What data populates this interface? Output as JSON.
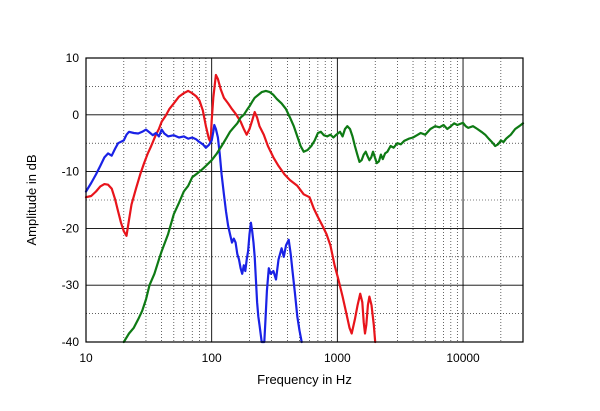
{
  "chart_data": {
    "type": "line",
    "title": "",
    "xlabel": "Frequency  in Hz",
    "ylabel": "Amplitude in dB",
    "x_scale": "log",
    "xlim": [
      10,
      30000
    ],
    "ylim": [
      -40,
      10
    ],
    "x_ticks": [
      10,
      100,
      1000,
      10000
    ],
    "x_tick_labels": [
      "10",
      "100",
      "1000",
      "10000"
    ],
    "y_ticks": [
      10,
      0,
      -10,
      -20,
      -30,
      -40
    ],
    "y_tick_labels": [
      "10",
      "0",
      "-10",
      "-20",
      "-30",
      "-40"
    ],
    "grid": true,
    "legend": "none",
    "series": [
      {
        "color": "#e8141b",
        "points": [
          [
            10,
            -14.5
          ],
          [
            11,
            -14.3
          ],
          [
            12,
            -13.5
          ],
          [
            13,
            -12.6
          ],
          [
            14,
            -12.2
          ],
          [
            15,
            -12.3
          ],
          [
            16,
            -13.0
          ],
          [
            17,
            -14.8
          ],
          [
            18,
            -17.0
          ],
          [
            19,
            -19.0
          ],
          [
            20,
            -20.5
          ],
          [
            21,
            -21.3
          ],
          [
            22,
            -18.5
          ],
          [
            23,
            -15.8
          ],
          [
            25,
            -13.0
          ],
          [
            27,
            -10.5
          ],
          [
            29,
            -8.5
          ],
          [
            31,
            -6.8
          ],
          [
            33,
            -5.5
          ],
          [
            36,
            -3.5
          ],
          [
            38,
            -2.5
          ],
          [
            40,
            -1.2
          ],
          [
            43,
            -0.2
          ],
          [
            46,
            1.0
          ],
          [
            50,
            2.0
          ],
          [
            55,
            3.2
          ],
          [
            60,
            3.8
          ],
          [
            65,
            4.2
          ],
          [
            70,
            3.8
          ],
          [
            75,
            3.3
          ],
          [
            80,
            2.5
          ],
          [
            85,
            0.8
          ],
          [
            90,
            -2.0
          ],
          [
            95,
            -4.2
          ],
          [
            98,
            -4.8
          ],
          [
            100,
            -1.0
          ],
          [
            103,
            3.0
          ],
          [
            106,
            5.5
          ],
          [
            108,
            7.0
          ],
          [
            112,
            6.3
          ],
          [
            118,
            4.5
          ],
          [
            125,
            3.0
          ],
          [
            135,
            2.0
          ],
          [
            145,
            1.0
          ],
          [
            155,
            0.2
          ],
          [
            170,
            -1.2
          ],
          [
            180,
            -2.5
          ],
          [
            190,
            -3.5
          ],
          [
            200,
            -2.5
          ],
          [
            210,
            -1.0
          ],
          [
            220,
            0.5
          ],
          [
            230,
            -0.5
          ],
          [
            240,
            -2.0
          ],
          [
            260,
            -3.5
          ],
          [
            280,
            -5.5
          ],
          [
            310,
            -7.5
          ],
          [
            340,
            -9.0
          ],
          [
            380,
            -10.5
          ],
          [
            420,
            -11.5
          ],
          [
            480,
            -12.5
          ],
          [
            540,
            -14.0
          ],
          [
            600,
            -14.5
          ],
          [
            650,
            -16.5
          ],
          [
            700,
            -18.0
          ],
          [
            760,
            -19.5
          ],
          [
            820,
            -21.0
          ],
          [
            880,
            -23.0
          ],
          [
            950,
            -26.5
          ],
          [
            1020,
            -29.0
          ],
          [
            1100,
            -32.0
          ],
          [
            1180,
            -35.0
          ],
          [
            1250,
            -37.5
          ],
          [
            1300,
            -38.5
          ],
          [
            1380,
            -36.0
          ],
          [
            1450,
            -33.5
          ],
          [
            1520,
            -31.5
          ],
          [
            1580,
            -33.0
          ],
          [
            1620,
            -36.5
          ],
          [
            1660,
            -38.5
          ],
          [
            1700,
            -37.0
          ],
          [
            1750,
            -33.5
          ],
          [
            1800,
            -32.0
          ],
          [
            1870,
            -33.5
          ],
          [
            1950,
            -37.0
          ],
          [
            2000,
            -40.0
          ]
        ]
      },
      {
        "color": "#1a22e6",
        "points": [
          [
            10,
            -13.5
          ],
          [
            11,
            -12.0
          ],
          [
            12,
            -10.5
          ],
          [
            13,
            -9.0
          ],
          [
            14,
            -7.5
          ],
          [
            15,
            -6.8
          ],
          [
            16,
            -7.2
          ],
          [
            17,
            -6.0
          ],
          [
            18,
            -5.0
          ],
          [
            20,
            -4.5
          ],
          [
            21,
            -3.5
          ],
          [
            22,
            -3.0
          ],
          [
            24,
            -3.2
          ],
          [
            26,
            -3.3
          ],
          [
            28,
            -3.0
          ],
          [
            30,
            -2.6
          ],
          [
            32,
            -3.1
          ],
          [
            34,
            -3.6
          ],
          [
            36,
            -3.2
          ],
          [
            38,
            -3.8
          ],
          [
            40,
            -2.6
          ],
          [
            42,
            -3.3
          ],
          [
            45,
            -3.8
          ],
          [
            50,
            -3.6
          ],
          [
            55,
            -4.0
          ],
          [
            60,
            -3.8
          ],
          [
            65,
            -4.2
          ],
          [
            70,
            -4.0
          ],
          [
            75,
            -4.3
          ],
          [
            80,
            -4.8
          ],
          [
            85,
            -5.2
          ],
          [
            90,
            -5.8
          ],
          [
            95,
            -5.3
          ],
          [
            100,
            -4.5
          ],
          [
            103,
            -3.0
          ],
          [
            105,
            -1.8
          ],
          [
            108,
            -2.5
          ],
          [
            112,
            -4.0
          ],
          [
            116,
            -7.0
          ],
          [
            120,
            -10.5
          ],
          [
            125,
            -14.0
          ],
          [
            130,
            -17.0
          ],
          [
            135,
            -19.5
          ],
          [
            140,
            -21.0
          ],
          [
            145,
            -22.5
          ],
          [
            150,
            -21.8
          ],
          [
            155,
            -22.5
          ],
          [
            160,
            -24.5
          ],
          [
            165,
            -25.5
          ],
          [
            170,
            -27.0
          ],
          [
            175,
            -28.0
          ],
          [
            180,
            -26.5
          ],
          [
            185,
            -27.5
          ],
          [
            190,
            -25.5
          ],
          [
            195,
            -24.0
          ],
          [
            200,
            -21.0
          ],
          [
            205,
            -19.0
          ],
          [
            210,
            -20.5
          ],
          [
            215,
            -22.5
          ],
          [
            220,
            -25.0
          ],
          [
            225,
            -29.0
          ],
          [
            230,
            -33.0
          ],
          [
            235,
            -35.5
          ],
          [
            240,
            -37.0
          ],
          [
            245,
            -38.5
          ],
          [
            250,
            -40.0
          ],
          [
            262,
            -40.0
          ],
          [
            268,
            -36.0
          ],
          [
            275,
            -31.0
          ],
          [
            285,
            -27.0
          ],
          [
            295,
            -28.0
          ],
          [
            310,
            -27.5
          ],
          [
            325,
            -29.0
          ],
          [
            340,
            -25.5
          ],
          [
            360,
            -23.5
          ],
          [
            375,
            -25.0
          ],
          [
            390,
            -23.0
          ],
          [
            410,
            -22.0
          ],
          [
            425,
            -24.5
          ],
          [
            440,
            -27.5
          ],
          [
            460,
            -31.5
          ],
          [
            480,
            -35.5
          ],
          [
            500,
            -38.0
          ],
          [
            520,
            -40.0
          ]
        ]
      },
      {
        "color": "#0e7a14",
        "points": [
          [
            20,
            -40.0
          ],
          [
            22,
            -38.5
          ],
          [
            24,
            -37.5
          ],
          [
            26,
            -36.0
          ],
          [
            28,
            -34.5
          ],
          [
            30,
            -32.5
          ],
          [
            32,
            -30.0
          ],
          [
            35,
            -28.0
          ],
          [
            38,
            -25.5
          ],
          [
            40,
            -24.0
          ],
          [
            45,
            -21.0
          ],
          [
            50,
            -17.5
          ],
          [
            55,
            -15.5
          ],
          [
            60,
            -13.5
          ],
          [
            65,
            -12.5
          ],
          [
            70,
            -11.0
          ],
          [
            75,
            -10.5
          ],
          [
            80,
            -10.0
          ],
          [
            85,
            -9.5
          ],
          [
            90,
            -9.0
          ],
          [
            100,
            -8.0
          ],
          [
            110,
            -6.8
          ],
          [
            120,
            -5.5
          ],
          [
            130,
            -4.2
          ],
          [
            140,
            -3.0
          ],
          [
            150,
            -2.2
          ],
          [
            160,
            -1.5
          ],
          [
            170,
            -0.5
          ],
          [
            180,
            0.0
          ],
          [
            190,
            0.8
          ],
          [
            200,
            1.5
          ],
          [
            210,
            2.3
          ],
          [
            220,
            3.0
          ],
          [
            235,
            3.5
          ],
          [
            250,
            4.0
          ],
          [
            270,
            4.2
          ],
          [
            290,
            4.0
          ],
          [
            310,
            3.5
          ],
          [
            330,
            2.8
          ],
          [
            360,
            2.0
          ],
          [
            390,
            1.0
          ],
          [
            420,
            -0.5
          ],
          [
            450,
            -2.0
          ],
          [
            480,
            -3.8
          ],
          [
            510,
            -5.5
          ],
          [
            540,
            -6.5
          ],
          [
            580,
            -6.2
          ],
          [
            620,
            -5.5
          ],
          [
            660,
            -4.5
          ],
          [
            700,
            -3.2
          ],
          [
            740,
            -3.0
          ],
          [
            780,
            -3.6
          ],
          [
            830,
            -3.8
          ],
          [
            880,
            -3.5
          ],
          [
            930,
            -4.0
          ],
          [
            980,
            -3.5
          ],
          [
            1050,
            -3.0
          ],
          [
            1100,
            -3.8
          ],
          [
            1150,
            -2.5
          ],
          [
            1200,
            -2.0
          ],
          [
            1260,
            -2.5
          ],
          [
            1320,
            -3.8
          ],
          [
            1380,
            -5.5
          ],
          [
            1440,
            -7.0
          ],
          [
            1500,
            -8.3
          ],
          [
            1560,
            -8.0
          ],
          [
            1620,
            -7.0
          ],
          [
            1680,
            -6.5
          ],
          [
            1740,
            -7.3
          ],
          [
            1800,
            -8.0
          ],
          [
            1860,
            -7.5
          ],
          [
            1920,
            -6.5
          ],
          [
            1990,
            -7.5
          ],
          [
            2060,
            -8.5
          ],
          [
            2140,
            -8.2
          ],
          [
            2220,
            -7.0
          ],
          [
            2300,
            -7.8
          ],
          [
            2400,
            -6.8
          ],
          [
            2500,
            -6.5
          ],
          [
            2650,
            -5.5
          ],
          [
            2800,
            -5.8
          ],
          [
            3000,
            -5.0
          ],
          [
            3200,
            -5.2
          ],
          [
            3400,
            -4.6
          ],
          [
            3700,
            -4.2
          ],
          [
            4000,
            -4.0
          ],
          [
            4300,
            -3.6
          ],
          [
            4600,
            -3.2
          ],
          [
            5000,
            -3.5
          ],
          [
            5500,
            -2.5
          ],
          [
            6000,
            -2.0
          ],
          [
            6500,
            -2.2
          ],
          [
            7000,
            -1.8
          ],
          [
            7500,
            -2.5
          ],
          [
            8000,
            -2.0
          ],
          [
            8500,
            -1.5
          ],
          [
            9000,
            -1.8
          ],
          [
            9500,
            -1.6
          ],
          [
            10000,
            -1.4
          ],
          [
            10500,
            -2.0
          ],
          [
            11000,
            -2.3
          ],
          [
            12000,
            -2.0
          ],
          [
            13000,
            -2.5
          ],
          [
            14000,
            -3.0
          ],
          [
            15000,
            -3.5
          ],
          [
            16000,
            -4.2
          ],
          [
            17000,
            -4.8
          ],
          [
            18000,
            -5.5
          ],
          [
            19000,
            -5.2
          ],
          [
            20000,
            -4.5
          ],
          [
            21000,
            -4.8
          ],
          [
            22000,
            -4.2
          ],
          [
            24000,
            -3.5
          ],
          [
            26000,
            -2.5
          ],
          [
            28000,
            -2.0
          ],
          [
            30000,
            -1.5
          ]
        ]
      }
    ]
  }
}
